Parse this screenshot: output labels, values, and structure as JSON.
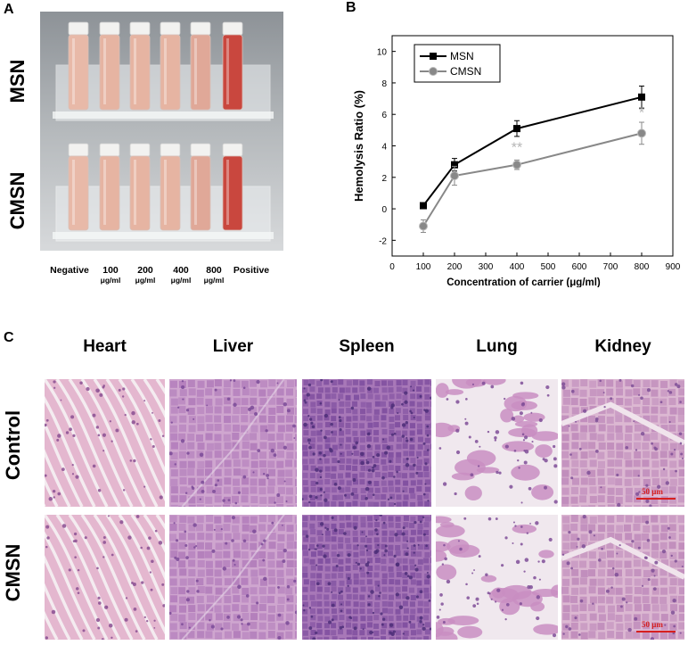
{
  "panels": {
    "a": "A",
    "b": "B",
    "c": "C"
  },
  "panel_a": {
    "rows": [
      "MSN",
      "CMSN"
    ],
    "tubes": [
      {
        "label": "Negative",
        "unit": ""
      },
      {
        "label": "100",
        "unit": "μg/ml"
      },
      {
        "label": "200",
        "unit": "μg/ml"
      },
      {
        "label": "400",
        "unit": "μg/ml"
      },
      {
        "label": "800",
        "unit": "μg/ml"
      },
      {
        "label": "Positive",
        "unit": ""
      }
    ],
    "colors": {
      "negative": "#e8b9a8",
      "light": "#e6b4a2",
      "mid": "#e0a898",
      "positive": "#c9473e",
      "background": "#9ea3a8"
    }
  },
  "chart_data": {
    "type": "line",
    "xlabel": "Concentration of carrier (μg/ml)",
    "ylabel": "Hemolysis Ratio (%)",
    "xlim": [
      0,
      900
    ],
    "ylim": [
      -3,
      11
    ],
    "xticks": [
      0,
      100,
      200,
      300,
      400,
      500,
      600,
      700,
      800,
      900
    ],
    "yticks": [
      -2,
      0,
      2,
      4,
      6,
      8,
      10
    ],
    "legend": "top-left",
    "series": [
      {
        "name": "MSN",
        "color": "#000000",
        "marker": "square",
        "x": [
          100,
          200,
          400,
          800
        ],
        "y": [
          0.2,
          2.8,
          5.1,
          7.1
        ],
        "err": [
          0.1,
          0.4,
          0.5,
          0.7
        ]
      },
      {
        "name": "CMSN",
        "color": "#888888",
        "marker": "circle",
        "x": [
          100,
          200,
          400,
          800
        ],
        "y": [
          -1.1,
          2.1,
          2.8,
          4.8
        ],
        "err": [
          0.4,
          0.6,
          0.3,
          0.7
        ]
      }
    ],
    "annotations": [
      {
        "x": 400,
        "y": 3.6,
        "text": "**"
      },
      {
        "x": 800,
        "y": 5.8,
        "text": "*"
      }
    ]
  },
  "panel_c": {
    "organs": [
      "Heart",
      "Liver",
      "Spleen",
      "Lung",
      "Kidney"
    ],
    "rows": [
      "Control",
      "CMSN"
    ],
    "scale_label": "50 μm"
  }
}
